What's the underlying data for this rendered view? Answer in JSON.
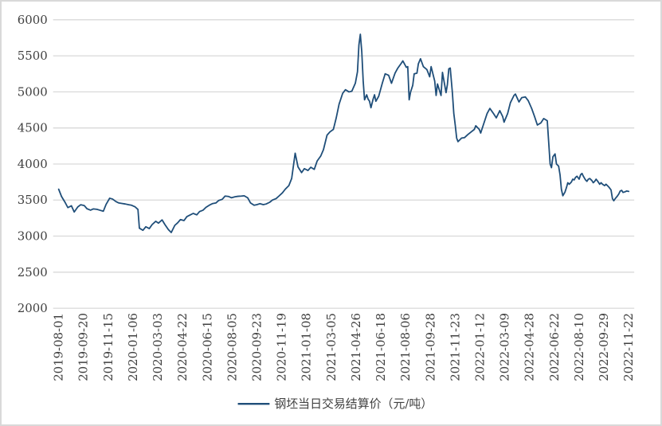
{
  "chart_data": {
    "type": "line",
    "title": "",
    "legend": {
      "label": "钢坯当日交易结算价（元/吨）",
      "position": "bottom-center"
    },
    "background": "#FFFFFF",
    "border_color": "#D9D9D9",
    "text_color": "#404040",
    "grid": {
      "show": true,
      "color": "#D9D9D9"
    },
    "y_axis": {
      "min": 2000,
      "max": 6000,
      "step": 500,
      "tick_values": [
        2000,
        2500,
        3000,
        3500,
        4000,
        4500,
        5000,
        5500,
        6000
      ],
      "tick_labels": [
        "2000",
        "2500",
        "3000",
        "3500",
        "4000",
        "4500",
        "5000",
        "5500",
        "6000"
      ]
    },
    "x_axis": {
      "unit": "trading-day index, 0 = 2019-08-01, 805 = 2022-11-22",
      "label_rotation_deg": -90,
      "tick_labels": [
        "2019-08-01",
        "2019-09-20",
        "2019-11-15",
        "2020-01-06",
        "2020-03-03",
        "2020-04-22",
        "2020-06-15",
        "2020-08-05",
        "2020-09-23",
        "2020-11-19",
        "2021-01-08",
        "2021-03-05",
        "2021-04-26",
        "2021-06-18",
        "2021-08-06",
        "2021-09-28",
        "2021-11-23",
        "2022-01-12",
        "2022-03-09",
        "2022-04-28",
        "2022-06-22",
        "2022-08-10",
        "2022-09-29",
        "2022-11-22"
      ],
      "tick_day_positions": [
        0,
        35,
        70,
        105,
        140,
        175,
        210,
        245,
        280,
        315,
        350,
        385,
        420,
        455,
        490,
        525,
        560,
        595,
        630,
        665,
        700,
        735,
        770,
        805
      ]
    },
    "series": [
      {
        "name": "钢坯当日交易结算价（元/吨）",
        "color": "#1F4E79",
        "points": [
          [
            0,
            3650
          ],
          [
            4,
            3550
          ],
          [
            9,
            3470
          ],
          [
            13,
            3395
          ],
          [
            18,
            3420
          ],
          [
            22,
            3335
          ],
          [
            27,
            3405
          ],
          [
            31,
            3435
          ],
          [
            36,
            3425
          ],
          [
            40,
            3380
          ],
          [
            45,
            3360
          ],
          [
            49,
            3378
          ],
          [
            54,
            3372
          ],
          [
            58,
            3360
          ],
          [
            63,
            3345
          ],
          [
            67,
            3440
          ],
          [
            72,
            3525
          ],
          [
            76,
            3515
          ],
          [
            81,
            3478
          ],
          [
            85,
            3460
          ],
          [
            90,
            3452
          ],
          [
            94,
            3445
          ],
          [
            99,
            3435
          ],
          [
            103,
            3428
          ],
          [
            108,
            3405
          ],
          [
            112,
            3370
          ],
          [
            114,
            3110
          ],
          [
            119,
            3080
          ],
          [
            123,
            3130
          ],
          [
            128,
            3105
          ],
          [
            132,
            3160
          ],
          [
            137,
            3205
          ],
          [
            141,
            3180
          ],
          [
            146,
            3225
          ],
          [
            150,
            3160
          ],
          [
            155,
            3090
          ],
          [
            159,
            3050
          ],
          [
            164,
            3150
          ],
          [
            168,
            3185
          ],
          [
            172,
            3230
          ],
          [
            177,
            3215
          ],
          [
            181,
            3270
          ],
          [
            186,
            3295
          ],
          [
            190,
            3315
          ],
          [
            195,
            3295
          ],
          [
            199,
            3340
          ],
          [
            204,
            3360
          ],
          [
            208,
            3400
          ],
          [
            213,
            3430
          ],
          [
            217,
            3450
          ],
          [
            222,
            3460
          ],
          [
            226,
            3495
          ],
          [
            231,
            3510
          ],
          [
            235,
            3555
          ],
          [
            240,
            3550
          ],
          [
            244,
            3532
          ],
          [
            249,
            3545
          ],
          [
            253,
            3552
          ],
          [
            258,
            3555
          ],
          [
            262,
            3560
          ],
          [
            267,
            3530
          ],
          [
            271,
            3460
          ],
          [
            276,
            3428
          ],
          [
            280,
            3437
          ],
          [
            284,
            3450
          ],
          [
            289,
            3437
          ],
          [
            293,
            3446
          ],
          [
            298,
            3470
          ],
          [
            302,
            3500
          ],
          [
            307,
            3520
          ],
          [
            311,
            3555
          ],
          [
            316,
            3600
          ],
          [
            320,
            3650
          ],
          [
            325,
            3700
          ],
          [
            329,
            3800
          ],
          [
            334,
            4150
          ],
          [
            338,
            3960
          ],
          [
            343,
            3880
          ],
          [
            347,
            3935
          ],
          [
            352,
            3910
          ],
          [
            356,
            3955
          ],
          [
            361,
            3925
          ],
          [
            365,
            4040
          ],
          [
            370,
            4110
          ],
          [
            374,
            4200
          ],
          [
            379,
            4400
          ],
          [
            383,
            4445
          ],
          [
            388,
            4480
          ],
          [
            392,
            4640
          ],
          [
            396,
            4830
          ],
          [
            401,
            4980
          ],
          [
            405,
            5030
          ],
          [
            410,
            5000
          ],
          [
            414,
            5010
          ],
          [
            419,
            5120
          ],
          [
            422,
            5280
          ],
          [
            424,
            5650
          ],
          [
            426,
            5800
          ],
          [
            428,
            5560
          ],
          [
            430,
            5150
          ],
          [
            432,
            4890
          ],
          [
            435,
            4960
          ],
          [
            437,
            4900
          ],
          [
            439,
            4870
          ],
          [
            441,
            4780
          ],
          [
            444,
            4900
          ],
          [
            446,
            4960
          ],
          [
            448,
            4870
          ],
          [
            452,
            4940
          ],
          [
            457,
            5120
          ],
          [
            461,
            5250
          ],
          [
            466,
            5230
          ],
          [
            470,
            5120
          ],
          [
            475,
            5260
          ],
          [
            479,
            5330
          ],
          [
            484,
            5400
          ],
          [
            486,
            5430
          ],
          [
            491,
            5340
          ],
          [
            493,
            5350
          ],
          [
            495,
            4890
          ],
          [
            497,
            5000
          ],
          [
            500,
            5090
          ],
          [
            502,
            5250
          ],
          [
            506,
            5260
          ],
          [
            508,
            5390
          ],
          [
            511,
            5460
          ],
          [
            515,
            5350
          ],
          [
            520,
            5310
          ],
          [
            524,
            5210
          ],
          [
            526,
            5350
          ],
          [
            531,
            5150
          ],
          [
            533,
            4950
          ],
          [
            535,
            5110
          ],
          [
            540,
            4950
          ],
          [
            542,
            5270
          ],
          [
            547,
            4990
          ],
          [
            549,
            5100
          ],
          [
            551,
            5320
          ],
          [
            553,
            5330
          ],
          [
            556,
            4990
          ],
          [
            558,
            4700
          ],
          [
            560,
            4540
          ],
          [
            562,
            4360
          ],
          [
            564,
            4310
          ],
          [
            569,
            4360
          ],
          [
            573,
            4365
          ],
          [
            578,
            4410
          ],
          [
            582,
            4440
          ],
          [
            587,
            4480
          ],
          [
            589,
            4530
          ],
          [
            594,
            4480
          ],
          [
            596,
            4430
          ],
          [
            600,
            4550
          ],
          [
            605,
            4700
          ],
          [
            609,
            4770
          ],
          [
            614,
            4700
          ],
          [
            618,
            4640
          ],
          [
            623,
            4740
          ],
          [
            627,
            4660
          ],
          [
            629,
            4580
          ],
          [
            634,
            4700
          ],
          [
            638,
            4850
          ],
          [
            643,
            4950
          ],
          [
            645,
            4970
          ],
          [
            650,
            4860
          ],
          [
            654,
            4920
          ],
          [
            659,
            4930
          ],
          [
            663,
            4880
          ],
          [
            668,
            4770
          ],
          [
            672,
            4660
          ],
          [
            676,
            4540
          ],
          [
            681,
            4570
          ],
          [
            685,
            4630
          ],
          [
            690,
            4600
          ],
          [
            692,
            4300
          ],
          [
            694,
            4000
          ],
          [
            696,
            3950
          ],
          [
            698,
            4100
          ],
          [
            701,
            4140
          ],
          [
            703,
            4000
          ],
          [
            706,
            3970
          ],
          [
            708,
            3850
          ],
          [
            710,
            3650
          ],
          [
            712,
            3560
          ],
          [
            715,
            3610
          ],
          [
            717,
            3670
          ],
          [
            719,
            3740
          ],
          [
            721,
            3720
          ],
          [
            724,
            3750
          ],
          [
            726,
            3790
          ],
          [
            728,
            3780
          ],
          [
            730,
            3815
          ],
          [
            732,
            3830
          ],
          [
            735,
            3790
          ],
          [
            737,
            3850
          ],
          [
            739,
            3870
          ],
          [
            741,
            3830
          ],
          [
            744,
            3780
          ],
          [
            746,
            3760
          ],
          [
            748,
            3790
          ],
          [
            750,
            3800
          ],
          [
            753,
            3770
          ],
          [
            755,
            3740
          ],
          [
            757,
            3760
          ],
          [
            759,
            3790
          ],
          [
            762,
            3750
          ],
          [
            764,
            3720
          ],
          [
            766,
            3740
          ],
          [
            768,
            3720
          ],
          [
            771,
            3700
          ],
          [
            773,
            3720
          ],
          [
            775,
            3700
          ],
          [
            777,
            3680
          ],
          [
            780,
            3640
          ],
          [
            782,
            3520
          ],
          [
            784,
            3490
          ],
          [
            786,
            3520
          ],
          [
            789,
            3555
          ],
          [
            791,
            3585
          ],
          [
            793,
            3625
          ],
          [
            795,
            3635
          ],
          [
            797,
            3605
          ],
          [
            800,
            3615
          ],
          [
            802,
            3625
          ],
          [
            805,
            3620
          ]
        ]
      }
    ]
  }
}
